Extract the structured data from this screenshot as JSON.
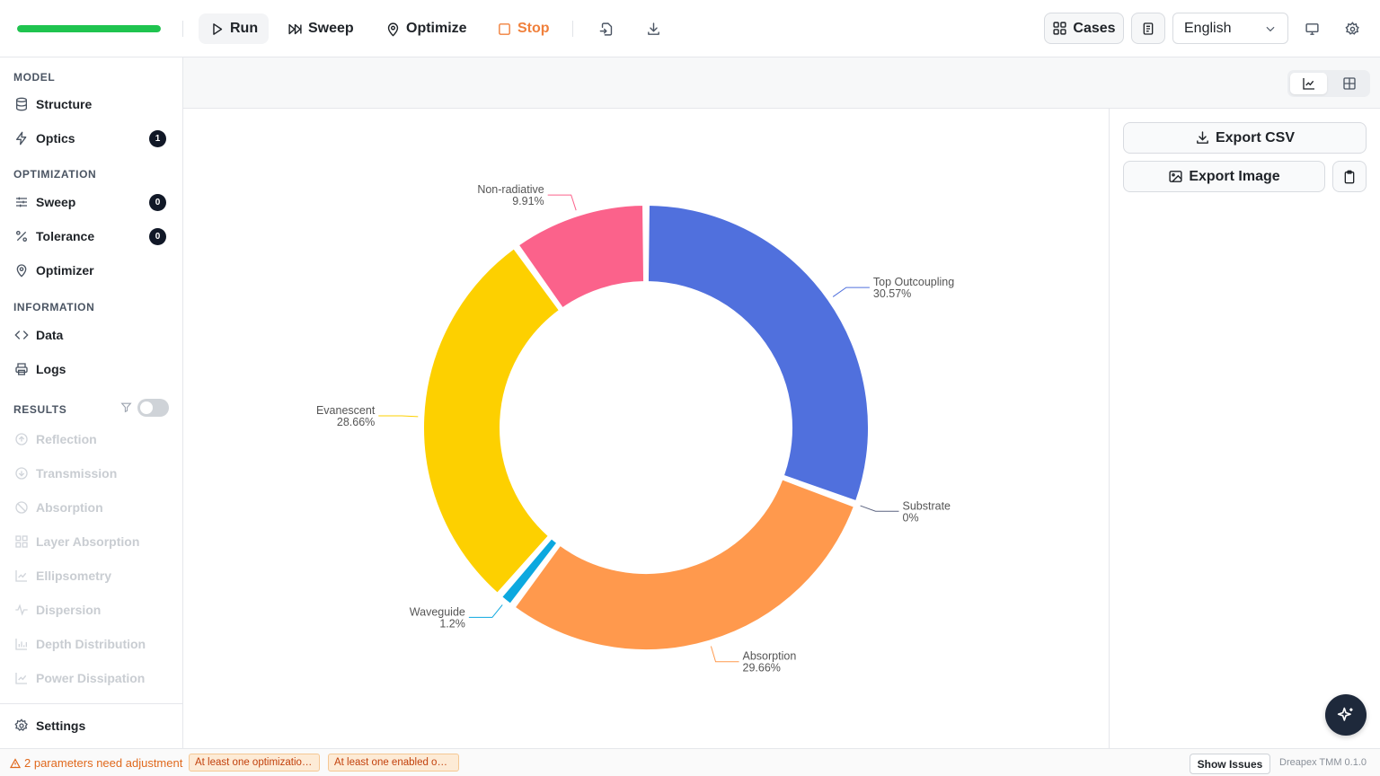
{
  "toolbar": {
    "progress": 1.0,
    "run_label": "Run",
    "sweep_label": "Sweep",
    "optimize_label": "Optimize",
    "stop_label": "Stop",
    "cases_label": "Cases",
    "language": "English"
  },
  "sidebar": {
    "model_title": "MODEL",
    "structure": "Structure",
    "optics": "Optics",
    "optics_badge": "1",
    "optimization_title": "OPTIMIZATION",
    "sweep": "Sweep",
    "sweep_badge": "0",
    "tolerance": "Tolerance",
    "tolerance_badge": "0",
    "optimizer": "Optimizer",
    "information_title": "INFORMATION",
    "data": "Data",
    "logs": "Logs",
    "results_title": "RESULTS",
    "results": [
      "Reflection",
      "Transmission",
      "Absorption",
      "Layer Absorption",
      "Ellipsometry",
      "Dispersion",
      "Depth Distribution",
      "Power Dissipation"
    ],
    "settings": "Settings"
  },
  "panel": {
    "export_csv": "Export CSV",
    "export_image": "Export Image"
  },
  "status": {
    "warning": "2 parameters need adjustment",
    "chip1": "At least one optimization variable...",
    "chip2": "At least one enabled optimization...",
    "show_issues": "Show Issues",
    "version": "Dreapex TMM 0.1.0"
  },
  "chart_data": {
    "type": "pie",
    "donut": true,
    "labels": [
      "Top Outcoupling",
      "Substrate",
      "Absorption",
      "Waveguide",
      "Evanescent",
      "Non-radiative"
    ],
    "values": [
      30.57,
      0,
      29.66,
      1.2,
      28.66,
      9.91
    ],
    "value_labels": [
      "30.57%",
      "0%",
      "29.66%",
      "1.2%",
      "28.66%",
      "9.91%"
    ],
    "colors": [
      "#5070dd",
      "#5c6480",
      "#ff994d",
      "#0ca8df",
      "#fdd000",
      "#fb628b"
    ]
  }
}
